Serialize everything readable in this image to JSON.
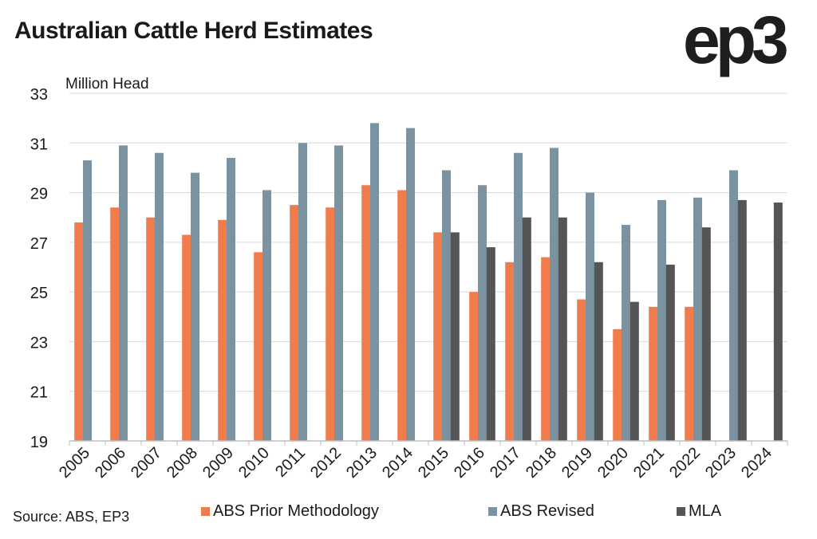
{
  "title": "Australian Cattle Herd Estimates",
  "logo_text": "ep3",
  "source": "Source: ABS, EP3",
  "colors": {
    "prior": "#f07c4c",
    "revised": "#7b93a0",
    "mla": "#555555",
    "grid": "#d9d9d9",
    "axis": "#bfbfbf"
  },
  "chart_data": {
    "type": "bar",
    "ylabel": "Million Head",
    "ylim": [
      19,
      33
    ],
    "yticks": [
      19,
      21,
      23,
      25,
      27,
      29,
      31,
      33
    ],
    "grid": true,
    "legend_position": "bottom",
    "categories": [
      "2005",
      "2006",
      "2007",
      "2008",
      "2009",
      "2010",
      "2011",
      "2012",
      "2013",
      "2014",
      "2015",
      "2016",
      "2017",
      "2018",
      "2019",
      "2020",
      "2021",
      "2022",
      "2023",
      "2024"
    ],
    "series": [
      {
        "name": "ABS Prior Methodology",
        "color": "#f07c4c",
        "values": [
          27.8,
          28.4,
          28.0,
          27.3,
          27.9,
          26.6,
          28.5,
          28.4,
          29.3,
          29.1,
          27.4,
          25.0,
          26.2,
          26.4,
          24.7,
          23.5,
          24.4,
          24.4,
          null,
          null
        ]
      },
      {
        "name": "ABS Revised",
        "color": "#7b93a0",
        "values": [
          30.3,
          30.9,
          30.6,
          29.8,
          30.4,
          29.1,
          31.0,
          30.9,
          31.8,
          31.6,
          29.9,
          29.3,
          30.6,
          30.8,
          29.0,
          27.7,
          28.7,
          28.8,
          29.9,
          null
        ]
      },
      {
        "name": "MLA",
        "color": "#555555",
        "values": [
          null,
          null,
          null,
          null,
          null,
          null,
          null,
          null,
          null,
          null,
          27.4,
          26.8,
          28.0,
          28.0,
          26.2,
          24.6,
          26.1,
          27.6,
          28.7,
          28.6
        ]
      }
    ]
  }
}
